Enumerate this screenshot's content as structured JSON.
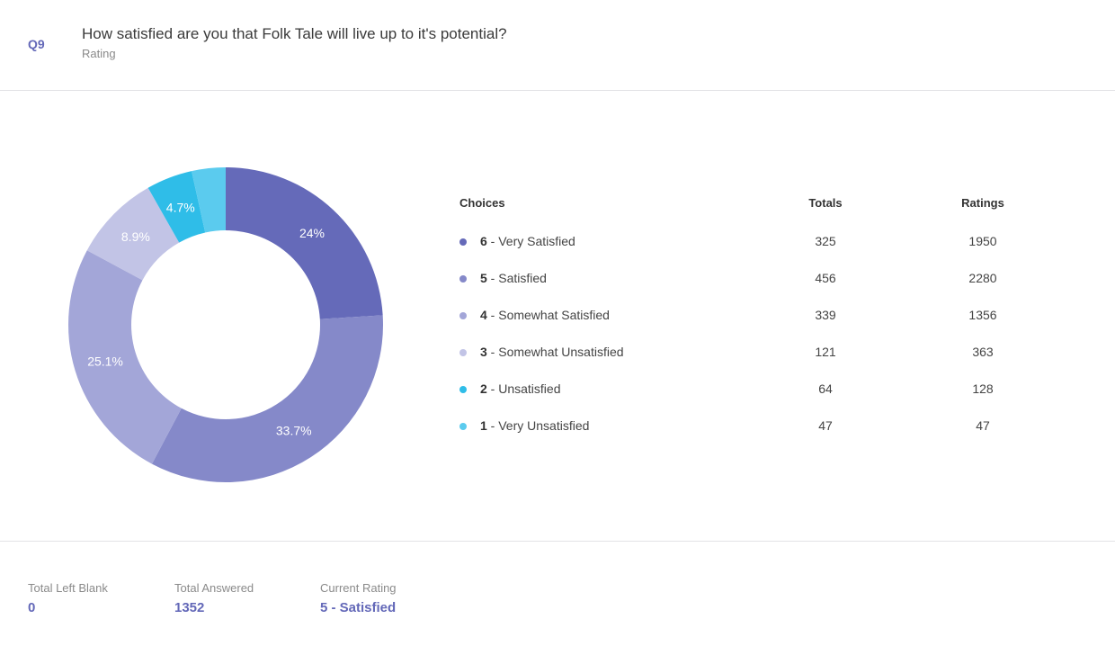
{
  "question": {
    "number": "Q9",
    "title": "How satisfied are you that Folk Tale will live up to it's potential?",
    "type": "Rating"
  },
  "table": {
    "headers": {
      "choices": "Choices",
      "totals": "Totals",
      "ratings": "Ratings"
    },
    "rows": [
      {
        "num": "6",
        "label": " - Very Satisfied",
        "total": "325",
        "rating": "1950",
        "color": "#656ab9"
      },
      {
        "num": "5",
        "label": " - Satisfied",
        "total": "456",
        "rating": "2280",
        "color": "#8589c9"
      },
      {
        "num": "4",
        "label": " - Somewhat Satisfied",
        "total": "339",
        "rating": "1356",
        "color": "#a3a6d8"
      },
      {
        "num": "3",
        "label": " - Somewhat Unsatisfied",
        "total": "121",
        "rating": "363",
        "color": "#c2c4e6"
      },
      {
        "num": "2",
        "label": " - Unsatisfied",
        "total": "64",
        "rating": "128",
        "color": "#2fbde8"
      },
      {
        "num": "1",
        "label": " - Very Unsatisfied",
        "total": "47",
        "rating": "47",
        "color": "#5bcbee"
      }
    ]
  },
  "chart_data": {
    "type": "pie",
    "donut": true,
    "categories": [
      "6 - Very Satisfied",
      "5 - Satisfied",
      "4 - Somewhat Satisfied",
      "3 - Somewhat Unsatisfied",
      "2 - Unsatisfied",
      "1 - Very Unsatisfied"
    ],
    "values": [
      325,
      456,
      339,
      121,
      64,
      47
    ],
    "labels": [
      "24%",
      "33.7%",
      "25.1%",
      "8.9%",
      "4.7%",
      ""
    ],
    "colors": [
      "#656ab9",
      "#8589c9",
      "#a3a6d8",
      "#c2c4e6",
      "#2fbde8",
      "#5bcbee"
    ]
  },
  "footer": {
    "left_blank_label": "Total Left Blank",
    "left_blank_value": "0",
    "answered_label": "Total Answered",
    "answered_value": "1352",
    "current_rating_label": "Current Rating",
    "current_rating_value": "5 - Satisfied"
  }
}
